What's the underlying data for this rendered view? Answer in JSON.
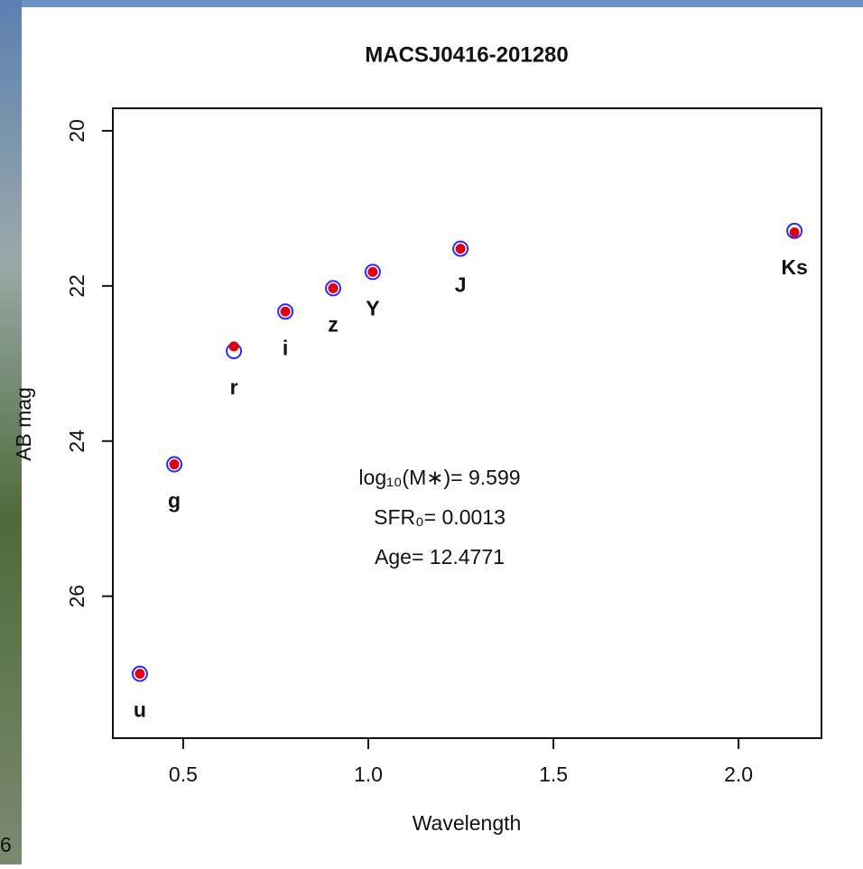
{
  "chart_data": {
    "type": "scatter",
    "title": "MACSJ0416-201280",
    "x_label": "Wavelength",
    "y_label": "AB mag",
    "x": [
      0.383,
      0.476,
      0.637,
      0.776,
      0.905,
      1.012,
      1.249,
      2.151
    ],
    "point_labels": [
      "u",
      "g",
      "r",
      "i",
      "z",
      "Y",
      "J",
      "Ks"
    ],
    "series": [
      {
        "color": "#2a2aff",
        "marker": "open",
        "values": [
          27.0,
          24.3,
          22.84,
          22.33,
          22.03,
          21.82,
          21.52,
          21.29
        ]
      },
      {
        "color": "#e00010",
        "marker": "filled",
        "values": [
          27.0,
          24.3,
          22.78,
          22.33,
          22.03,
          21.82,
          21.52,
          21.31
        ]
      }
    ],
    "annotations": [
      "log₁₀(M∗)= 9.599",
      "SFR₀= 0.0013",
      "Age= 12.4771"
    ],
    "xlim": [
      0.31,
      2.224
    ],
    "ylim": [
      19.71,
      27.83
    ],
    "y_reversed": true,
    "xticks": [
      0.5,
      {
        "value": 1,
        "label": "1.0"
      },
      1.5,
      {
        "value": 2,
        "label": "2.0"
      }
    ],
    "yticks": [
      20,
      22,
      24,
      26
    ]
  },
  "background_text": "6"
}
